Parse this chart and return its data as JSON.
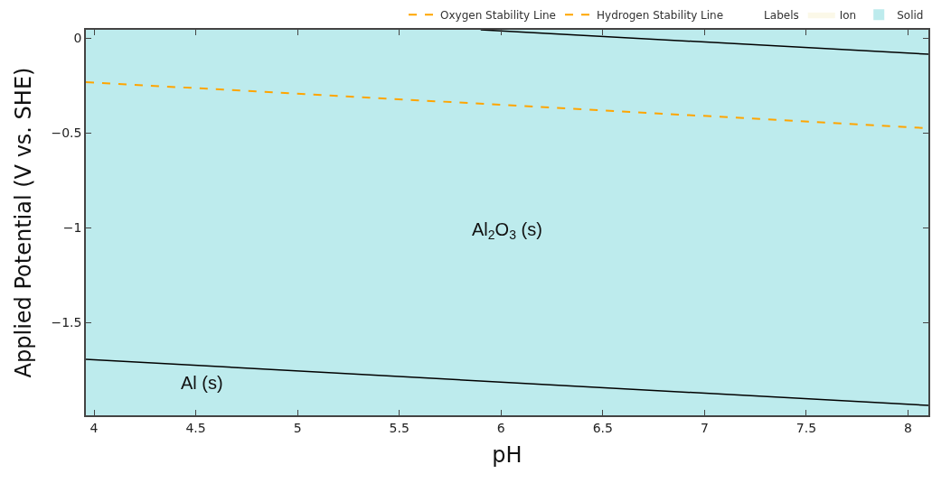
{
  "chart_data": {
    "type": "line",
    "xlabel": "pH",
    "ylabel": "Applied Potential (V vs. SHE)",
    "xlim": [
      3.96,
      8.1
    ],
    "ylim": [
      -1.99,
      0.043
    ],
    "xticks": [
      4,
      4.5,
      5,
      5.5,
      6,
      6.5,
      7,
      7.5,
      8
    ],
    "yticks": [
      {
        "value": 0,
        "label": "0"
      },
      {
        "value": -0.5,
        "label": "−0.5"
      },
      {
        "value": -1,
        "label": "−1"
      },
      {
        "value": -1.5,
        "label": "−1.5"
      }
    ],
    "grid": false,
    "legend": "top right",
    "annotations": [
      "Al$_{2}$O$_{3}$ (s)",
      "Al (s)"
    ],
    "bands": [
      {
        "axis": "y",
        "from": -1.99,
        "to": 0.043,
        "label": "Solid",
        "color": "#bdebed"
      }
    ],
    "series": [
      {
        "name": "Oxygen Stability Line",
        "type": "line",
        "line_style": "dashed",
        "color": "#ffa500"
      },
      {
        "name": "Hydrogen Stability Line",
        "type": "line",
        "line_style": "dashed",
        "color": "#ffa500",
        "x": [
          3.96,
          8.1
        ],
        "values": [
          -0.233,
          -0.476
        ]
      },
      {
        "name": "Labels",
        "type": "scatter",
        "marker": "none"
      },
      {
        "name": "Ion",
        "type": "area",
        "color": "#fbf8e8"
      },
      {
        "line_style": "solid",
        "color": "#000000",
        "x": [
          5.9,
          8.1
        ],
        "values": [
          0.043,
          -0.086
        ]
      },
      {
        "line_style": "solid",
        "color": "#000000",
        "x": [
          3.96,
          8.1
        ],
        "values": [
          -1.695,
          -1.938
        ]
      }
    ]
  }
}
